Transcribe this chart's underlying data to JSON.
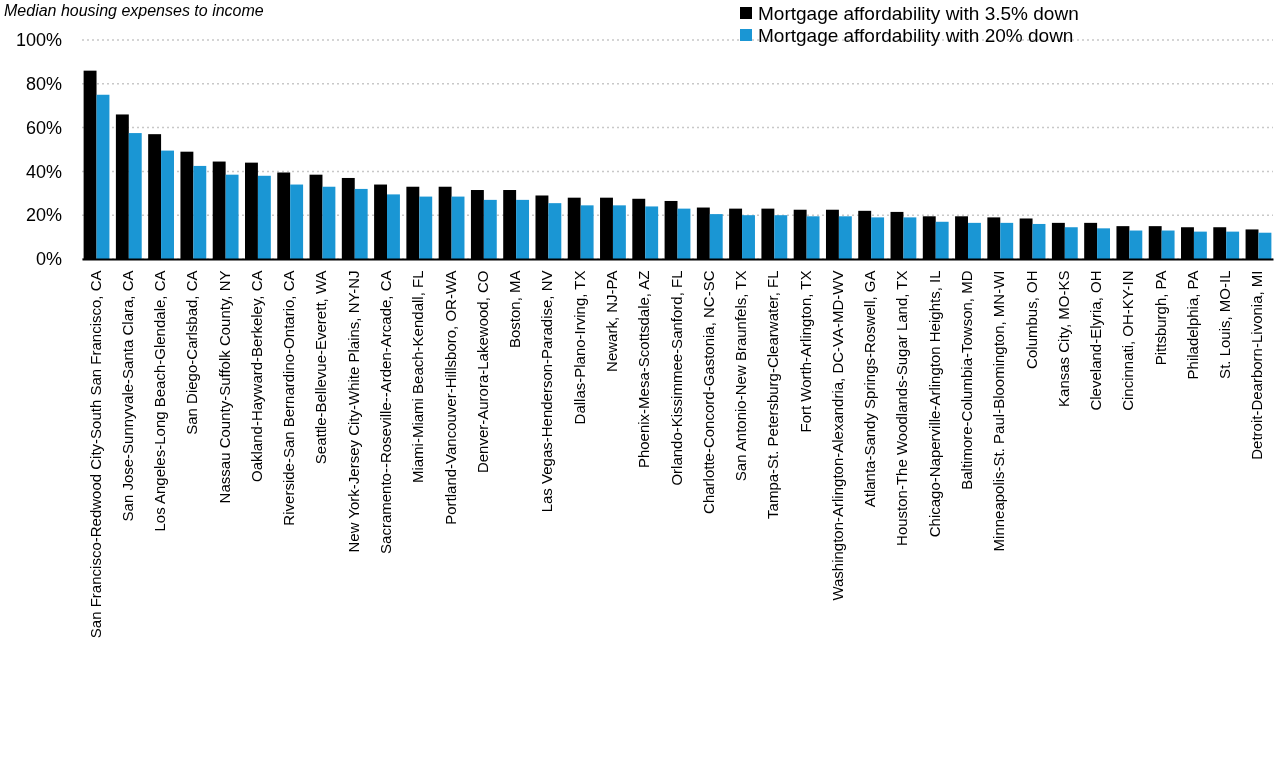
{
  "chart_data": {
    "type": "bar",
    "title": "Median housing expenses to income",
    "categories": [
      "San Francisco-Redwood City-South San Francisco, CA",
      "San Jose-Sunnyvale-Santa Clara, CA",
      "Los Angeles-Long Beach-Glendale, CA",
      "San Diego-Carlsbad, CA",
      "Nassau County-Suffolk County, NY",
      "Oakland-Hayward-Berkeley, CA",
      "Riverside-San Bernardino-Ontario, CA",
      "Seattle-Bellevue-Everett, WA",
      "New York-Jersey City-White Plains, NY-NJ",
      "Sacramento--Roseville--Arden-Arcade, CA",
      "Miami-Miami Beach-Kendall, FL",
      "Portland-Vancouver-Hillsboro, OR-WA",
      "Denver-Aurora-Lakewood, CO",
      "Boston, MA",
      "Las Vegas-Henderson-Paradise, NV",
      "Dallas-Plano-Irving, TX",
      "Newark, NJ-PA",
      "Phoenix-Mesa-Scottsdale, AZ",
      "Orlando-Kissimmee-Sanford, FL",
      "Charlotte-Concord-Gastonia, NC-SC",
      "San Antonio-New Braunfels, TX",
      "Tampa-St. Petersburg-Clearwater, FL",
      "Fort Worth-Arlington, TX",
      "Washington-Arlington-Alexandria, DC-VA-MD-WV",
      "Atlanta-Sandy Springs-Roswell, GA",
      "Houston-The Woodlands-Sugar Land, TX",
      "Chicago-Naperville-Arlington Heights, IL",
      "Baltimore-Columbia-Towson, MD",
      "Minneapolis-St. Paul-Bloomington, MN-WI",
      "Columbus, OH",
      "Kansas City, MO-KS",
      "Cleveland-Elyria, OH",
      "Cincinnati, OH-KY-IN",
      "Pittsburgh, PA",
      "Philadelphia, PA",
      "St. Louis, MO-IL",
      "Detroit-Dearborn-Livonia, MI"
    ],
    "series": [
      {
        "name": "Mortgage affordability with 3.5% down",
        "color": "#000000",
        "values": [
          86,
          66,
          57,
          49,
          44.5,
          44,
          39.5,
          38.5,
          37,
          34,
          33,
          33,
          31.5,
          31.5,
          29,
          28,
          28,
          27.5,
          26.5,
          23.5,
          23,
          23,
          22.5,
          22.5,
          22,
          21.5,
          19.5,
          19.5,
          19,
          18.5,
          16.5,
          16.5,
          15,
          15,
          14.5,
          14.5,
          13.5
        ]
      },
      {
        "name": "Mortgage affordability with 20% down",
        "color": "#1a96d4",
        "values": [
          75,
          57.5,
          49.5,
          42.5,
          38.5,
          38,
          34,
          33,
          32,
          29.5,
          28.5,
          28.5,
          27,
          27,
          25.5,
          24.5,
          24.5,
          24,
          23,
          20.5,
          20,
          20,
          19.5,
          19.5,
          19,
          19,
          17,
          16.5,
          16.5,
          16,
          14.5,
          14,
          13,
          13,
          12.5,
          12.5,
          12
        ]
      }
    ],
    "ylim": [
      0,
      100
    ],
    "yticks": [
      {
        "value": 0,
        "label": "0%"
      },
      {
        "value": 20,
        "label": "20%"
      },
      {
        "value": 40,
        "label": "40%"
      },
      {
        "value": 60,
        "label": "60%"
      },
      {
        "value": 80,
        "label": "80%"
      },
      {
        "value": 100,
        "label": "100%"
      }
    ],
    "grid": "y",
    "legend": "top right"
  }
}
